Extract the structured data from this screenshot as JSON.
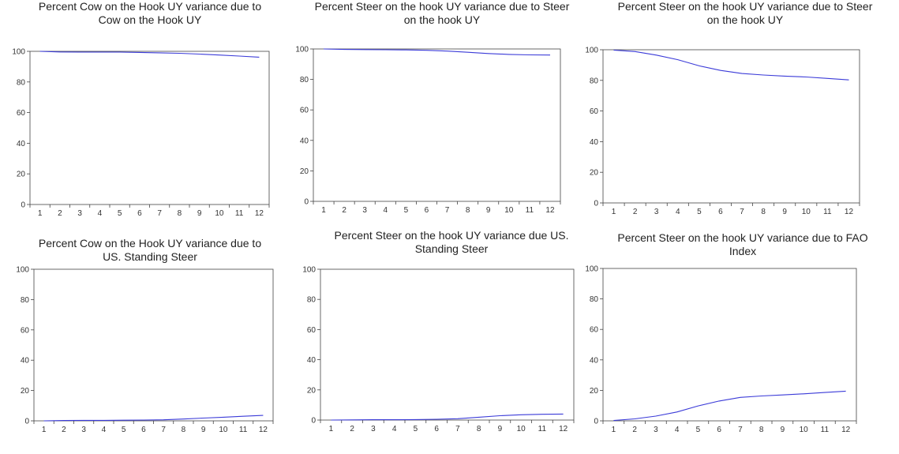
{
  "chart_data": [
    {
      "type": "line",
      "title_line1": "Percent Cow on the Hook UY variance due to",
      "title_line2": "Cow on the Hook UY",
      "x": [
        1,
        2,
        3,
        4,
        5,
        6,
        7,
        8,
        9,
        10,
        11,
        12
      ],
      "y_ticks": [
        0,
        20,
        40,
        60,
        80,
        100
      ],
      "ylim": [
        0,
        100
      ],
      "series": [
        {
          "values": [
            100,
            99.6,
            99.5,
            99.5,
            99.5,
            99.3,
            99.0,
            98.7,
            98.2,
            97.6,
            96.9,
            96.2
          ]
        }
      ],
      "line_color": "#3b3bd8"
    },
    {
      "type": "line",
      "title_line1": "Percent Steer on the hook UY  variance due to Steer",
      "title_line2": "on the hook UY",
      "x": [
        1,
        2,
        3,
        4,
        5,
        6,
        7,
        8,
        9,
        10,
        11,
        12
      ],
      "y_ticks": [
        0,
        20,
        40,
        60,
        80,
        100
      ],
      "ylim": [
        0,
        100
      ],
      "series": [
        {
          "values": [
            100,
            99.7,
            99.6,
            99.5,
            99.4,
            99.1,
            98.6,
            97.8,
            97.0,
            96.4,
            96.1,
            96.0
          ]
        }
      ],
      "line_color": "#3b3bd8"
    },
    {
      "type": "line",
      "title_line1": "Percent Steer on the hook UY variance due to Steer",
      "title_line2": "on the hook UY",
      "x": [
        1,
        2,
        3,
        4,
        5,
        6,
        7,
        8,
        9,
        10,
        11,
        12
      ],
      "y_ticks": [
        0,
        20,
        40,
        60,
        80,
        100
      ],
      "ylim": [
        0,
        100
      ],
      "series": [
        {
          "values": [
            99.8,
            98.8,
            96.5,
            93.5,
            89.5,
            86.5,
            84.5,
            83.5,
            82.8,
            82.2,
            81.3,
            80.3
          ]
        }
      ],
      "line_color": "#3b3bd8"
    },
    {
      "type": "line",
      "title_line1": "Percent Cow on the Hook UY variance due to",
      "title_line2": "US. Standing Steer",
      "x": [
        1,
        2,
        3,
        4,
        5,
        6,
        7,
        8,
        9,
        10,
        11,
        12
      ],
      "y_ticks": [
        0,
        20,
        40,
        60,
        80,
        100
      ],
      "ylim": [
        0,
        100
      ],
      "series": [
        {
          "values": [
            0,
            0.2,
            0.3,
            0.3,
            0.4,
            0.5,
            0.7,
            1.2,
            1.8,
            2.4,
            3.0,
            3.6
          ]
        }
      ],
      "line_color": "#3b3bd8"
    },
    {
      "type": "line",
      "title_line1": "Percent Steer on the hook UY variance due US.",
      "title_line2": "Standing Steer",
      "x": [
        1,
        2,
        3,
        4,
        5,
        6,
        7,
        8,
        9,
        10,
        11,
        12
      ],
      "y_ticks": [
        0,
        20,
        40,
        60,
        80,
        100
      ],
      "ylim": [
        0,
        100
      ],
      "series": [
        {
          "values": [
            0,
            0.1,
            0.2,
            0.2,
            0.3,
            0.5,
            0.9,
            1.9,
            2.9,
            3.5,
            3.8,
            4.0
          ]
        }
      ],
      "line_color": "#3b3bd8"
    },
    {
      "type": "line",
      "title_line1": "Percent Steer on the hook UY variance due to FAO",
      "title_line2": "Index",
      "x": [
        1,
        2,
        3,
        4,
        5,
        6,
        7,
        8,
        9,
        10,
        11,
        12
      ],
      "y_ticks": [
        0,
        20,
        40,
        60,
        80,
        100
      ],
      "ylim": [
        0,
        100
      ],
      "series": [
        {
          "values": [
            0.2,
            1.3,
            3.1,
            5.8,
            9.8,
            13.0,
            15.4,
            16.3,
            17.0,
            17.7,
            18.6,
            19.5
          ]
        }
      ],
      "line_color": "#3b3bd8"
    }
  ]
}
